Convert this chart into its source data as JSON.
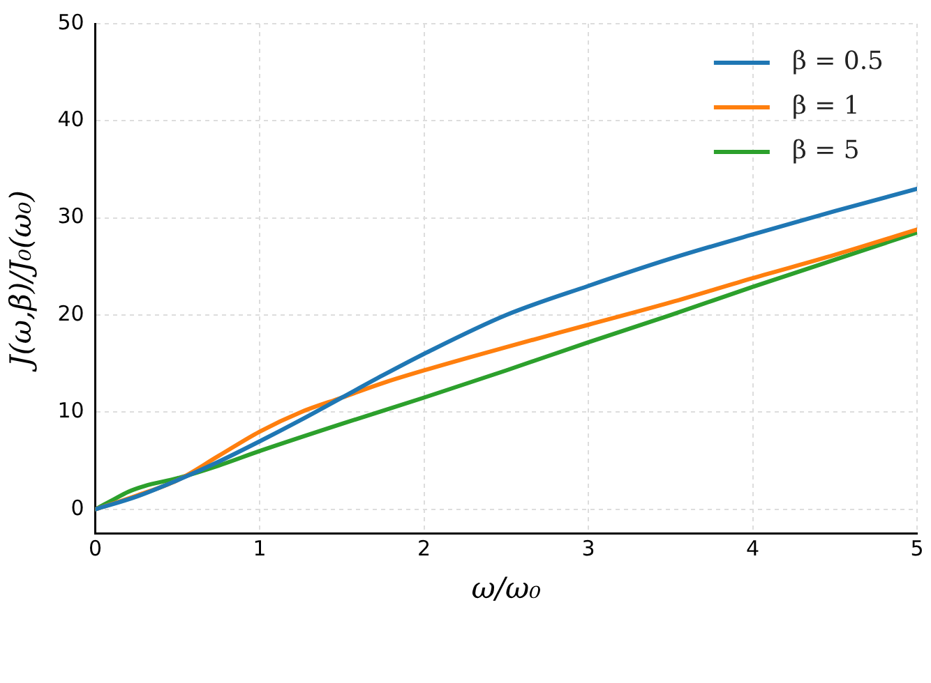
{
  "chart_data": {
    "type": "line",
    "xlabel": "ω/ω₀",
    "ylabel": "J(ω,β)/J₀(ω₀)",
    "xlim": [
      0,
      5
    ],
    "ylim": [
      -2.5,
      50
    ],
    "xticks": [
      0,
      1,
      2,
      3,
      4,
      5
    ],
    "yticks": [
      0,
      10,
      20,
      30,
      40,
      50
    ],
    "grid": true,
    "legend": "top right",
    "line_style": "solid",
    "marker": "none",
    "series": [
      {
        "name": "β = 0.5",
        "color": "#1f77b4",
        "x": [
          0,
          0.25,
          0.5,
          0.75,
          1,
          1.25,
          1.5,
          1.75,
          2,
          2.5,
          3,
          3.5,
          4,
          4.5,
          5
        ],
        "values": [
          0,
          1.3,
          3,
          4.9,
          7,
          9.2,
          11.5,
          13.8,
          16,
          20,
          23,
          25.8,
          28.3,
          30.7,
          33
        ]
      },
      {
        "name": "β = 1",
        "color": "#ff7f0e",
        "x": [
          0,
          0.25,
          0.5,
          0.75,
          1,
          1.25,
          1.5,
          1.75,
          2,
          2.5,
          3,
          3.5,
          4,
          4.5,
          5
        ],
        "values": [
          0,
          1.4,
          3,
          5.5,
          8,
          10,
          11.5,
          13,
          14.3,
          16.7,
          19,
          21.3,
          23.8,
          26.2,
          28.8
        ]
      },
      {
        "name": "β = 5",
        "color": "#2ca02c",
        "x": [
          0,
          0.1,
          0.2,
          0.3,
          0.5,
          0.75,
          1,
          1.5,
          2,
          2.5,
          3,
          3.5,
          4,
          4.5,
          5
        ],
        "values": [
          0,
          0.9,
          1.8,
          2.4,
          3.2,
          4.5,
          6,
          8.8,
          11.5,
          14.3,
          17.2,
          20,
          22.9,
          25.7,
          28.5
        ]
      }
    ]
  }
}
